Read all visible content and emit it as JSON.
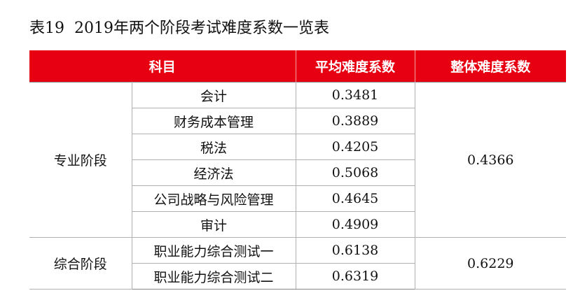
{
  "title": "表19  2019年两个阶段考试难度系数一览表",
  "table": {
    "header": [
      "科目",
      "平均难度系数",
      "整体难度系数"
    ],
    "groups": [
      {
        "stage": "专业阶段",
        "overall": "0.4366",
        "subjects": [
          {
            "name": "会计",
            "avg": "0.3481"
          },
          {
            "name": "财务成本管理",
            "avg": "0.3889"
          },
          {
            "name": "税法",
            "avg": "0.4205"
          },
          {
            "name": "经济法",
            "avg": "0.5068"
          },
          {
            "name": "公司战略与风险管理",
            "avg": "0.4645"
          },
          {
            "name": "审计",
            "avg": "0.4909"
          }
        ]
      },
      {
        "stage": "综合阶段",
        "overall": "0.6229",
        "subjects": [
          {
            "name": "职业能力综合测试一",
            "avg": "0.6138"
          },
          {
            "name": "职业能力综合测试二",
            "avg": "0.6319"
          }
        ]
      }
    ]
  }
}
